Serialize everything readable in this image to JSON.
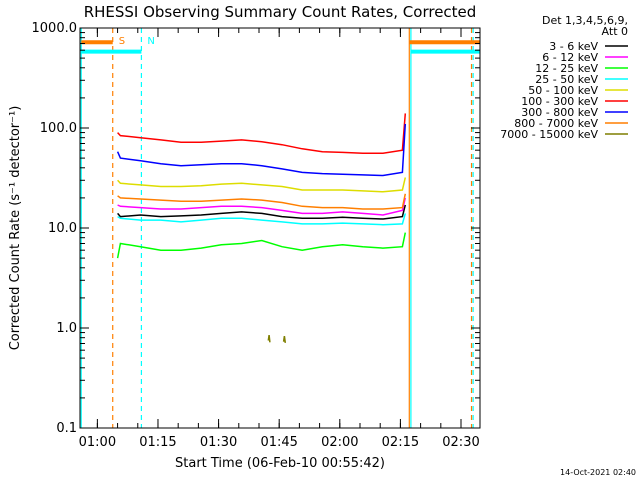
{
  "chart_data": {
    "type": "line",
    "title": "RHESSI Observing Summary Count Rates, Corrected",
    "xlabel": "Start Time (06-Feb-10 00:55:42)",
    "ylabel": "Corrected Count Rate (s⁻¹ detector⁻¹)",
    "y_scale": "log",
    "ylim": [
      0.1,
      1000.0
    ],
    "y_ticks": [
      {
        "value": 0.1,
        "label": "0.1"
      },
      {
        "value": 1.0,
        "label": "1.0"
      },
      {
        "value": 10.0,
        "label": "10.0"
      },
      {
        "value": 100.0,
        "label": "100.0"
      },
      {
        "value": 1000.0,
        "label": "1000.0"
      }
    ],
    "xlim_minutes": [
      0.0,
      99.0
    ],
    "x_ticks": [
      {
        "minute": 4.3,
        "label": "01:00"
      },
      {
        "minute": 19.3,
        "label": "01:15"
      },
      {
        "minute": 34.3,
        "label": "01:30"
      },
      {
        "minute": 49.3,
        "label": "01:45"
      },
      {
        "minute": 64.3,
        "label": "02:00"
      },
      {
        "minute": 79.3,
        "label": "02:15"
      },
      {
        "minute": 94.3,
        "label": "02:30"
      }
    ],
    "legend": {
      "position": "outside-right",
      "header": [
        "Det 1,3,4,5,6,9,",
        "Att 0"
      ]
    },
    "series": [
      {
        "name": "3 - 6 keV",
        "color": "#000000",
        "x": [
          9.3,
          10,
          15,
          20,
          25,
          30,
          35,
          40,
          45,
          50,
          55,
          60,
          65,
          70,
          75,
          79.8,
          80.5
        ],
        "y": [
          14.0,
          13.0,
          13.5,
          13.0,
          13.2,
          13.5,
          14.0,
          14.5,
          14.0,
          13.0,
          12.5,
          12.5,
          12.8,
          12.5,
          12.3,
          13.0,
          17.0
        ]
      },
      {
        "name": "6 - 12 keV",
        "color": "#ff00ff",
        "x": [
          9.3,
          10,
          15,
          20,
          25,
          30,
          35,
          40,
          45,
          50,
          55,
          60,
          65,
          70,
          75,
          79.8,
          80.5
        ],
        "y": [
          17.0,
          16.5,
          16.0,
          15.5,
          15.5,
          16.0,
          16.5,
          16.5,
          16.0,
          15.0,
          14.0,
          14.0,
          14.5,
          14.0,
          13.5,
          15.0,
          20.0
        ]
      },
      {
        "name": "12 - 25 keV",
        "color": "#00ff00",
        "x": [
          9.3,
          10,
          15,
          20,
          25,
          30,
          35,
          40,
          45,
          50,
          55,
          60,
          65,
          70,
          75,
          79.8,
          80.5
        ],
        "y": [
          5.0,
          7.0,
          6.5,
          6.0,
          6.0,
          6.3,
          6.8,
          7.0,
          7.5,
          6.5,
          6.0,
          6.5,
          6.8,
          6.5,
          6.3,
          6.5,
          9.0
        ]
      },
      {
        "name": "25 - 50 keV",
        "color": "#00ffff",
        "x": [
          9.3,
          10,
          15,
          20,
          25,
          30,
          35,
          40,
          45,
          50,
          55,
          60,
          65,
          70,
          75,
          79.8,
          80.5
        ],
        "y": [
          13.0,
          12.5,
          12.0,
          12.0,
          11.5,
          12.0,
          12.5,
          12.5,
          12.0,
          11.5,
          11.0,
          11.0,
          11.2,
          11.0,
          10.8,
          11.0,
          14.0
        ]
      },
      {
        "name": "50 - 100 keV",
        "color": "#dddd00",
        "x": [
          9.3,
          10,
          15,
          20,
          25,
          30,
          35,
          40,
          45,
          50,
          55,
          60,
          65,
          70,
          75,
          79.8,
          80.5
        ],
        "y": [
          30.0,
          28.0,
          27.0,
          26.0,
          26.0,
          26.5,
          27.5,
          28.0,
          27.0,
          26.0,
          24.0,
          24.0,
          24.0,
          23.5,
          23.0,
          24.0,
          32.0
        ]
      },
      {
        "name": "100 - 300 keV",
        "color": "#ff0000",
        "x": [
          9.3,
          10,
          15,
          20,
          25,
          30,
          35,
          40,
          45,
          50,
          55,
          60,
          65,
          70,
          75,
          79.8,
          80.5
        ],
        "y": [
          90.0,
          84.0,
          80.0,
          76.0,
          72.0,
          72.0,
          74.0,
          76.0,
          73.0,
          68.0,
          62.0,
          58.0,
          57.0,
          56.0,
          56.0,
          60.0,
          140.0
        ]
      },
      {
        "name": "300 - 800 keV",
        "color": "#0000ff",
        "x": [
          9.3,
          10,
          15,
          20,
          25,
          30,
          35,
          40,
          45,
          50,
          55,
          60,
          65,
          70,
          75,
          79.8,
          80.5
        ],
        "y": [
          58.0,
          50.0,
          47.0,
          44.0,
          42.0,
          43.0,
          44.0,
          44.0,
          42.0,
          39.0,
          36.0,
          35.0,
          34.5,
          34.0,
          33.5,
          36.0,
          110.0
        ]
      },
      {
        "name": "800 - 7000 keV",
        "color": "#ff7f00",
        "x": [
          9.3,
          10,
          15,
          20,
          25,
          30,
          35,
          40,
          45,
          50,
          55,
          60,
          65,
          70,
          75,
          79.8,
          80.5
        ],
        "y": [
          21.0,
          20.0,
          19.5,
          19.0,
          18.5,
          18.5,
          19.0,
          19.5,
          19.0,
          18.0,
          16.5,
          16.0,
          16.0,
          15.5,
          15.5,
          16.0,
          22.0
        ]
      },
      {
        "name": "7000 - 15000 keV",
        "color": "#7f7f00",
        "x": [
          46.6,
          46.8,
          47.0,
          50.4,
          50.6,
          50.8
        ],
        "y": [
          0.75,
          0.85,
          0.72,
          0.73,
          0.83,
          0.71
        ]
      }
    ],
    "vertical_markers": [
      {
        "minute": 0.3,
        "color": "#00ffff",
        "style": "solid"
      },
      {
        "minute": 8.1,
        "color": "#ff7f00",
        "style": "dashed",
        "label": "S"
      },
      {
        "minute": 15.2,
        "color": "#00ffff",
        "style": "dashed",
        "label": "N"
      },
      {
        "minute": 81.5,
        "color": "#ff7f00",
        "style": "solid"
      },
      {
        "minute": 81.9,
        "color": "#00ffff",
        "style": "solid"
      },
      {
        "minute": 96.9,
        "color": "#ff7f00",
        "style": "dashed"
      },
      {
        "minute": 97.3,
        "color": "#00ffff",
        "style": "dashed"
      }
    ],
    "status_bars": [
      {
        "color": "#ff7f00",
        "y_value": 720,
        "segments": [
          [
            0.3,
            8.1
          ],
          [
            81.5,
            99.0
          ]
        ]
      },
      {
        "color": "#00ffff",
        "y_value": 580,
        "segments": [
          [
            0.3,
            15.2
          ],
          [
            81.9,
            99.0
          ]
        ]
      }
    ],
    "grid": false,
    "timestamp": "14-Oct-2021 02:40"
  }
}
